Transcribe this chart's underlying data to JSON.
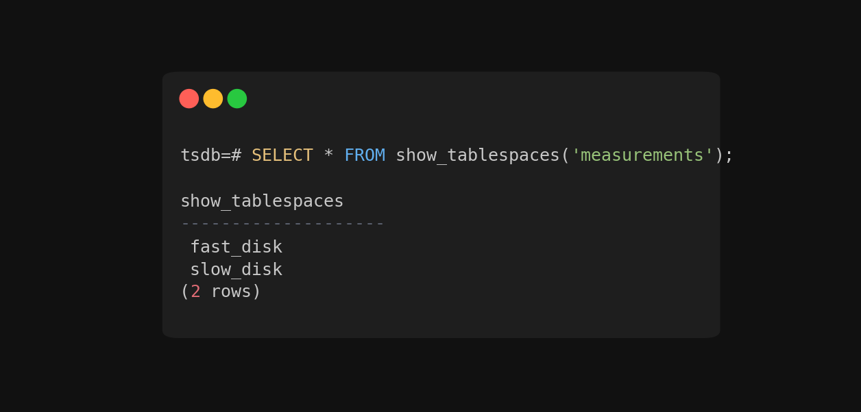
{
  "bg_outer": "#111111",
  "bg_terminal": "#1e1e1e",
  "dot_colors": [
    "#ff5f57",
    "#febc2e",
    "#28c840"
  ],
  "font_size": 18,
  "font_family": "monospace",
  "line1_segments": [
    {
      "text": "tsdb=#",
      "color": "#c8c8c8"
    },
    {
      "text": " SELECT",
      "color": "#e5c07b"
    },
    {
      "text": " *",
      "color": "#c8c8c8"
    },
    {
      "text": " FROM",
      "color": "#61afef"
    },
    {
      "text": " show_tablespaces(",
      "color": "#c8c8c8"
    },
    {
      "text": "'measurements'",
      "color": "#98c379"
    },
    {
      "text": ");",
      "color": "#c8c8c8"
    }
  ],
  "line2_text": "show_tablespaces",
  "line2_color": "#c8c8c8",
  "line3_text": "--------------------",
  "line3_color": "#5c6370",
  "line4_text": " fast_disk",
  "line4_color": "#c8c8c8",
  "line5_text": " slow_disk",
  "line5_color": "#c8c8c8",
  "line6_segments": [
    {
      "text": "(",
      "color": "#c8c8c8"
    },
    {
      "text": "2",
      "color": "#e06c75"
    },
    {
      "text": " rows)",
      "color": "#c8c8c8"
    }
  ]
}
